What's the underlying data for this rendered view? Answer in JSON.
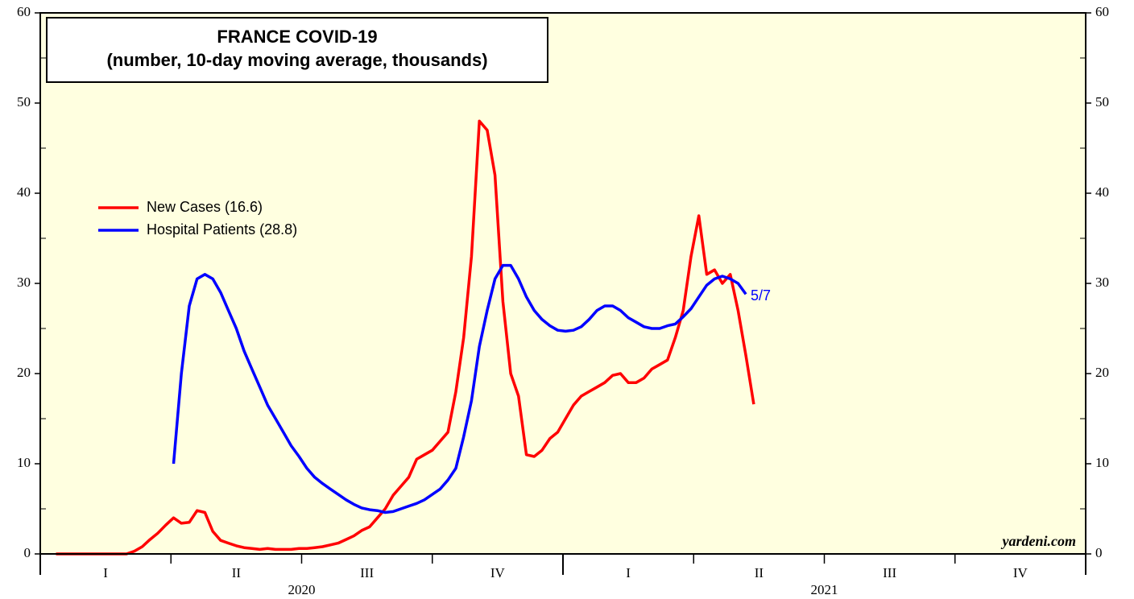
{
  "chart_data": {
    "type": "line",
    "title": "FRANCE COVID-19",
    "subtitle": "(number, 10-day moving average, thousands)",
    "annotations": [
      "5/7",
      "yardeni.com"
    ],
    "x": [
      2020.03,
      2020.045,
      2020.06,
      2020.075,
      2020.09,
      2020.105,
      2020.12,
      2020.135,
      2020.15,
      2020.165,
      2020.18,
      2020.195,
      2020.21,
      2020.225,
      2020.24,
      2020.255,
      2020.27,
      2020.285,
      2020.3,
      2020.315,
      2020.33,
      2020.345,
      2020.36,
      2020.375,
      2020.39,
      2020.405,
      2020.42,
      2020.435,
      2020.45,
      2020.465,
      2020.48,
      2020.495,
      2020.51,
      2020.525,
      2020.54,
      2020.555,
      2020.57,
      2020.585,
      2020.6,
      2020.615,
      2020.63,
      2020.645,
      2020.66,
      2020.675,
      2020.69,
      2020.705,
      2020.72,
      2020.735,
      2020.75,
      2020.765,
      2020.78,
      2020.795,
      2020.81,
      2020.825,
      2020.84,
      2020.855,
      2020.87,
      2020.885,
      2020.9,
      2020.915,
      2020.93,
      2020.945,
      2020.96,
      2020.975,
      2020.99,
      2021.005,
      2021.02,
      2021.035,
      2021.05,
      2021.065,
      2021.08,
      2021.095,
      2021.11,
      2021.125,
      2021.14,
      2021.155,
      2021.17,
      2021.185,
      2021.2,
      2021.215,
      2021.23,
      2021.245,
      2021.26,
      2021.275,
      2021.29,
      2021.305,
      2021.32,
      2021.335,
      2021.35,
      2021.365
    ],
    "series": [
      {
        "name": "New Cases (16.6)",
        "color": "#ff0000",
        "values": [
          0,
          0,
          0,
          0,
          0,
          0,
          0,
          0,
          0,
          0,
          0.3,
          0.8,
          1.6,
          2.3,
          3.2,
          4,
          3.4,
          3.5,
          4.8,
          4.6,
          2.5,
          1.5,
          1.2,
          0.9,
          0.7,
          0.6,
          0.5,
          0.6,
          0.5,
          0.5,
          0.5,
          0.6,
          0.6,
          0.7,
          0.8,
          1.0,
          1.2,
          1.6,
          2,
          2.6,
          3,
          4,
          5,
          6.5,
          7.5,
          8.5,
          10.5,
          11,
          11.5,
          12.5,
          13.5,
          18,
          24,
          33,
          48,
          47,
          42,
          28,
          20,
          17.5,
          11,
          10.8,
          11.5,
          12.8,
          13.5,
          15,
          16.5,
          17.5,
          18,
          18.5,
          19,
          19.8,
          20,
          19,
          19,
          19.5,
          20.5,
          21,
          21.5,
          24,
          27,
          33,
          37.5,
          31,
          31.5,
          30,
          31,
          27,
          22,
          16.6
        ]
      },
      {
        "name": "Hospital Patients (28.8)",
        "color": "#0000ff",
        "values": [
          null,
          null,
          null,
          null,
          null,
          null,
          null,
          null,
          null,
          null,
          null,
          null,
          null,
          null,
          null,
          10,
          20,
          27.5,
          30.5,
          31,
          30.5,
          29,
          27,
          25,
          22.5,
          20.5,
          18.5,
          16.5,
          15,
          13.5,
          12,
          10.8,
          9.5,
          8.5,
          7.8,
          7.2,
          6.6,
          6,
          5.5,
          5.1,
          4.9,
          4.8,
          4.6,
          4.7,
          5,
          5.3,
          5.6,
          6,
          6.6,
          7.2,
          8.2,
          9.5,
          13,
          17,
          23,
          27,
          30.5,
          32,
          32,
          30.5,
          28.5,
          27,
          26,
          25.3,
          24.8,
          24.7,
          24.8,
          25.2,
          26,
          27,
          27.5,
          27.5,
          27,
          26.2,
          25.7,
          25.2,
          25,
          25,
          25.3,
          25.5,
          26.3,
          27.2,
          28.5,
          29.8,
          30.5,
          30.8,
          30.5,
          30,
          28.8,
          null
        ]
      }
    ],
    "xlim": [
      2020,
      2022
    ],
    "xticks": [
      {
        "value": 2020.125,
        "label": "I"
      },
      {
        "value": 2020.375,
        "label": "II"
      },
      {
        "value": 2020.625,
        "label": "III"
      },
      {
        "value": 2020.875,
        "label": "IV"
      },
      {
        "value": 2021.125,
        "label": "I"
      },
      {
        "value": 2021.375,
        "label": "II"
      },
      {
        "value": 2021.625,
        "label": "III"
      },
      {
        "value": 2021.875,
        "label": "IV"
      }
    ],
    "year_labels": [
      {
        "value": 2020.5,
        "label": "2020"
      },
      {
        "value": 2021.5,
        "label": "2021"
      }
    ],
    "ylim": [
      0,
      60
    ],
    "yticks": [
      0,
      10,
      20,
      30,
      40,
      50,
      60
    ],
    "y2lim": [
      0,
      60
    ],
    "y2ticks": [
      0,
      10,
      20,
      30,
      40,
      50,
      60
    ],
    "legend": "upper left"
  }
}
